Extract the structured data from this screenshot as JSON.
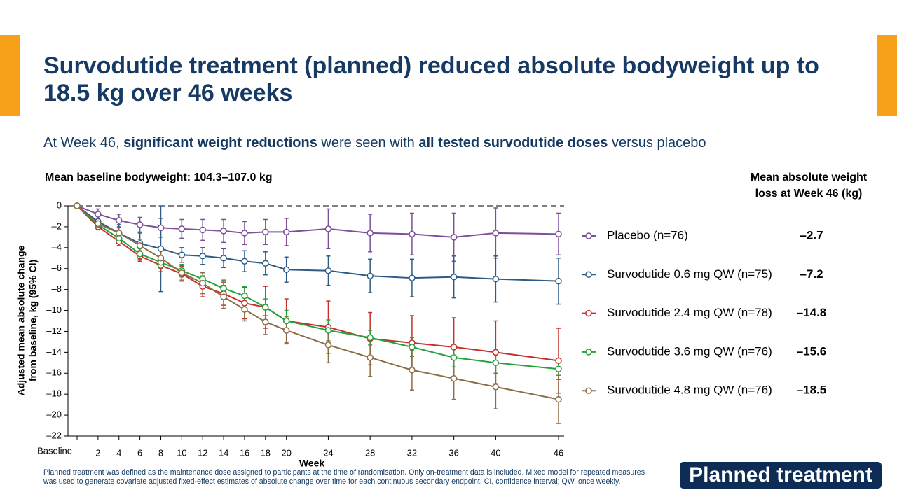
{
  "slide": {
    "title": "Survodutide treatment (planned) reduced absolute bodyweight up to 18.5 kg over 46 weeks",
    "subtitle": [
      {
        "text": "At Week 46, ",
        "bold": false
      },
      {
        "text": "significant weight reductions",
        "bold": true
      },
      {
        "text": " were seen with ",
        "bold": false
      },
      {
        "text": "all tested survodutide doses",
        "bold": true
      },
      {
        "text": " versus placebo",
        "bold": false
      }
    ],
    "footnote": "Planned treatment was defined as the maintenance dose assigned to participants at the time of randomisation. Only on-treatment data is included. Mixed model for repeated measures was used to generate covariate adjusted fixed-effect estimates of absolute change over time for each continuous secondary endpoint. CI, confidence interval; QW, once weekly.",
    "badge": "Planned treatment"
  },
  "chart_data": {
    "type": "line",
    "annotation": "Mean baseline bodyweight: 104.3–107.0 kg",
    "xlabel": "Week",
    "ylabel": [
      "Adjusted mean absolute change",
      "from baseline, kg (95% CI)"
    ],
    "x": [
      0,
      2,
      4,
      6,
      8,
      10,
      12,
      14,
      16,
      18,
      20,
      24,
      28,
      32,
      36,
      40,
      46
    ],
    "xlim": [
      0,
      46
    ],
    "xticks": [
      {
        "value": 0,
        "label": "Baseline"
      },
      2,
      4,
      6,
      8,
      10,
      12,
      14,
      16,
      18,
      20,
      24,
      28,
      32,
      36,
      40,
      46
    ],
    "ylim": [
      -22,
      0
    ],
    "yticks": [
      {
        "value": -22,
        "label": "–22"
      },
      {
        "value": -20,
        "label": "–20"
      },
      {
        "value": -18,
        "label": "–18"
      },
      {
        "value": -16,
        "label": "–16"
      },
      {
        "value": -14,
        "label": "–14"
      },
      {
        "value": -12,
        "label": "–12"
      },
      {
        "value": -10,
        "label": "–10"
      },
      {
        "value": -8,
        "label": "–8"
      },
      {
        "value": -6,
        "label": "–6"
      },
      {
        "value": -4,
        "label": "–4"
      },
      {
        "value": -2,
        "label": "–2"
      },
      0
    ],
    "series": [
      {
        "name": "Placebo (n=76)",
        "color": "#7d4e9a",
        "values": [
          0,
          -0.8,
          -1.4,
          -1.8,
          -2.1,
          -2.2,
          -2.3,
          -2.4,
          -2.6,
          -2.5,
          -2.5,
          -2.2,
          -2.6,
          -2.7,
          -3.0,
          -2.6,
          -2.7
        ],
        "errors": [
          null,
          0.5,
          0.6,
          0.7,
          0.9,
          0.9,
          1.0,
          1.1,
          1.1,
          1.2,
          1.3,
          1.9,
          1.8,
          2.0,
          2.3,
          2.4,
          2.0
        ]
      },
      {
        "name": "Survodutide 0.6 mg QW (n=75)",
        "color": "#2d5b86",
        "values": [
          0,
          -1.5,
          -2.6,
          -3.6,
          -4.1,
          -4.7,
          -4.8,
          -5.0,
          -5.3,
          -5.5,
          -6.1,
          -6.2,
          -6.7,
          -6.9,
          -6.8,
          -7.0,
          -7.2
        ],
        "errors": [
          null,
          0.6,
          0.8,
          1.0,
          4.1,
          0.7,
          0.8,
          0.9,
          1.0,
          1.1,
          1.2,
          1.4,
          1.6,
          1.8,
          2.0,
          2.2,
          2.2
        ]
      },
      {
        "name": "Survodutide 2.4 mg QW (n=78)",
        "color": "#c4302b",
        "values": [
          0,
          -2.0,
          -3.4,
          -4.8,
          -5.7,
          -6.5,
          -7.7,
          -8.4,
          -9.3,
          -9.7,
          -11.0,
          -11.6,
          -12.7,
          -13.1,
          -13.5,
          -14.0,
          -14.8
        ],
        "errors": [
          null,
          0.3,
          0.4,
          0.5,
          0.6,
          0.7,
          1.0,
          1.1,
          1.5,
          2.0,
          2.1,
          2.5,
          2.5,
          2.6,
          2.8,
          3.0,
          3.1
        ]
      },
      {
        "name": "Survodutide 3.6 mg QW (n=76)",
        "color": "#22a33b",
        "values": [
          0,
          -1.8,
          -3.1,
          -4.6,
          -5.4,
          -6.2,
          -7.0,
          -7.9,
          -8.6,
          -9.7,
          -11.0,
          -11.9,
          -12.6,
          -13.5,
          -14.5,
          -15.0,
          -15.6
        ],
        "errors": [
          null,
          0.3,
          0.4,
          0.5,
          0.6,
          0.6,
          0.6,
          0.8,
          0.9,
          0.8,
          1.0,
          1.0,
          0.7,
          0.9,
          0.9,
          1.0,
          1.0
        ]
      },
      {
        "name": "Survodutide 4.8 mg QW (n=76)",
        "color": "#8c6d47",
        "values": [
          0,
          -1.7,
          -2.6,
          -3.8,
          -5.0,
          -6.4,
          -7.4,
          -8.7,
          -9.9,
          -11.1,
          -11.9,
          -13.3,
          -14.5,
          -15.7,
          -16.5,
          -17.3,
          -18.5
        ],
        "errors": [
          null,
          0.4,
          0.5,
          0.6,
          0.8,
          0.7,
          1.0,
          1.1,
          1.1,
          1.2,
          1.3,
          1.7,
          1.8,
          1.9,
          2.0,
          2.1,
          2.3
        ]
      }
    ],
    "week46_loss": {
      "header": [
        "Mean absolute weight",
        "loss at Week 46 (kg)"
      ],
      "labels": [
        "–2.7",
        "–7.2",
        "–14.8",
        "–15.6",
        "–18.5"
      ]
    }
  }
}
